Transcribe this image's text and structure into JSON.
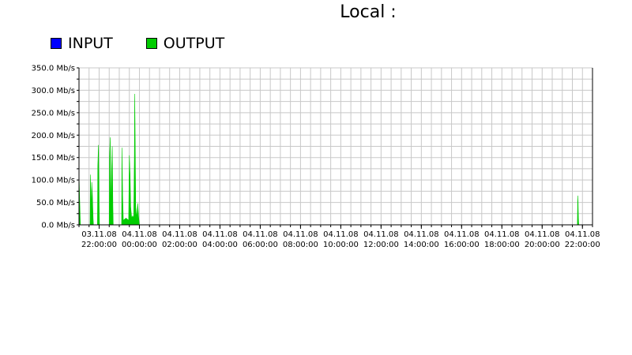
{
  "chart_data": {
    "type": "area",
    "title": "Local :",
    "series": [
      {
        "name": "INPUT",
        "color": "#0000ff",
        "values": []
      },
      {
        "name": "OUTPUT",
        "color": "#00cc00",
        "points": [
          [
            "03.11.08 21:00",
            0
          ],
          [
            "03.11.08 21:00",
            115
          ],
          [
            "03.11.08 21:01",
            85
          ],
          [
            "03.11.08 21:03",
            30
          ],
          [
            "03.11.08 21:04",
            0
          ],
          [
            "03.11.08 21:33",
            0
          ],
          [
            "03.11.08 21:34",
            112
          ],
          [
            "03.11.08 21:36",
            30
          ],
          [
            "03.11.08 21:38",
            95
          ],
          [
            "03.11.08 21:40",
            65
          ],
          [
            "03.11.08 21:42",
            15
          ],
          [
            "03.11.08 21:43",
            0
          ],
          [
            "03.11.08 21:55",
            0
          ],
          [
            "03.11.08 21:56",
            130
          ],
          [
            "03.11.08 21:58",
            178
          ],
          [
            "03.11.08 22:00",
            40
          ],
          [
            "03.11.08 22:01",
            0
          ],
          [
            "03.11.08 22:30",
            0
          ],
          [
            "03.11.08 22:31",
            150
          ],
          [
            "03.11.08 22:33",
            195
          ],
          [
            "03.11.08 22:35",
            20
          ],
          [
            "03.11.08 22:37",
            120
          ],
          [
            "03.11.08 22:39",
            175
          ],
          [
            "03.11.08 22:41",
            40
          ],
          [
            "03.11.08 22:42",
            0
          ],
          [
            "03.11.08 23:07",
            0
          ],
          [
            "03.11.08 23:08",
            172
          ],
          [
            "03.11.08 23:10",
            65
          ],
          [
            "03.11.08 23:12",
            10
          ],
          [
            "03.11.08 23:20",
            15
          ],
          [
            "03.11.08 23:28",
            10
          ],
          [
            "03.11.08 23:30",
            155
          ],
          [
            "03.11.08 23:32",
            115
          ],
          [
            "03.11.08 23:34",
            40
          ],
          [
            "03.11.08 23:37",
            15
          ],
          [
            "03.11.08 23:40",
            20
          ],
          [
            "03.11.08 23:43",
            15
          ],
          [
            "03.11.08 23:45",
            150
          ],
          [
            "03.11.08 23:46",
            292
          ],
          [
            "03.11.08 23:47",
            220
          ],
          [
            "03.11.08 23:49",
            40
          ],
          [
            "03.11.08 23:52",
            15
          ],
          [
            "03.11.08 23:55",
            48
          ],
          [
            "03.11.08 23:58",
            15
          ],
          [
            "04.11.08 00:00",
            0
          ],
          [
            "04.11.08 21:45",
            0
          ],
          [
            "04.11.08 21:46",
            65
          ],
          [
            "04.11.08 21:47",
            50
          ],
          [
            "04.11.08 21:48",
            15
          ],
          [
            "04.11.08 21:49",
            0
          ]
        ]
      }
    ],
    "legend": {
      "position": "top-left",
      "items": [
        {
          "label": "INPUT",
          "color": "#0000ff"
        },
        {
          "label": "OUTPUT",
          "color": "#00cc00"
        }
      ]
    },
    "ylim": [
      0,
      350
    ],
    "y_ticks": [
      "0.0 Mb/s",
      "50.0 Mb/s",
      "100.0 Mb/s",
      "150.0 Mb/s",
      "200.0 Mb/s",
      "250.0 Mb/s",
      "300.0 Mb/s",
      "350.0 Mb/s"
    ],
    "x_ticks": [
      {
        "date": "03.11.08",
        "time": "22:00:00"
      },
      {
        "date": "04.11.08",
        "time": "00:00:00"
      },
      {
        "date": "04.11.08",
        "time": "02:00:00"
      },
      {
        "date": "04.11.08",
        "time": "04:00:00"
      },
      {
        "date": "04.11.08",
        "time": "06:00:00"
      },
      {
        "date": "04.11.08",
        "time": "08:00:00"
      },
      {
        "date": "04.11.08",
        "time": "10:00:00"
      },
      {
        "date": "04.11.08",
        "time": "12:00:00"
      },
      {
        "date": "04.11.08",
        "time": "14:00:00"
      },
      {
        "date": "04.11.08",
        "time": "16:00:00"
      },
      {
        "date": "04.11.08",
        "time": "18:00:00"
      },
      {
        "date": "04.11.08",
        "time": "20:00:00"
      },
      {
        "date": "04.11.08",
        "time": "22:00:00"
      }
    ],
    "xlim": [
      "03.11.08 21:00",
      "04.11.08 22:30"
    ],
    "grid": true
  }
}
